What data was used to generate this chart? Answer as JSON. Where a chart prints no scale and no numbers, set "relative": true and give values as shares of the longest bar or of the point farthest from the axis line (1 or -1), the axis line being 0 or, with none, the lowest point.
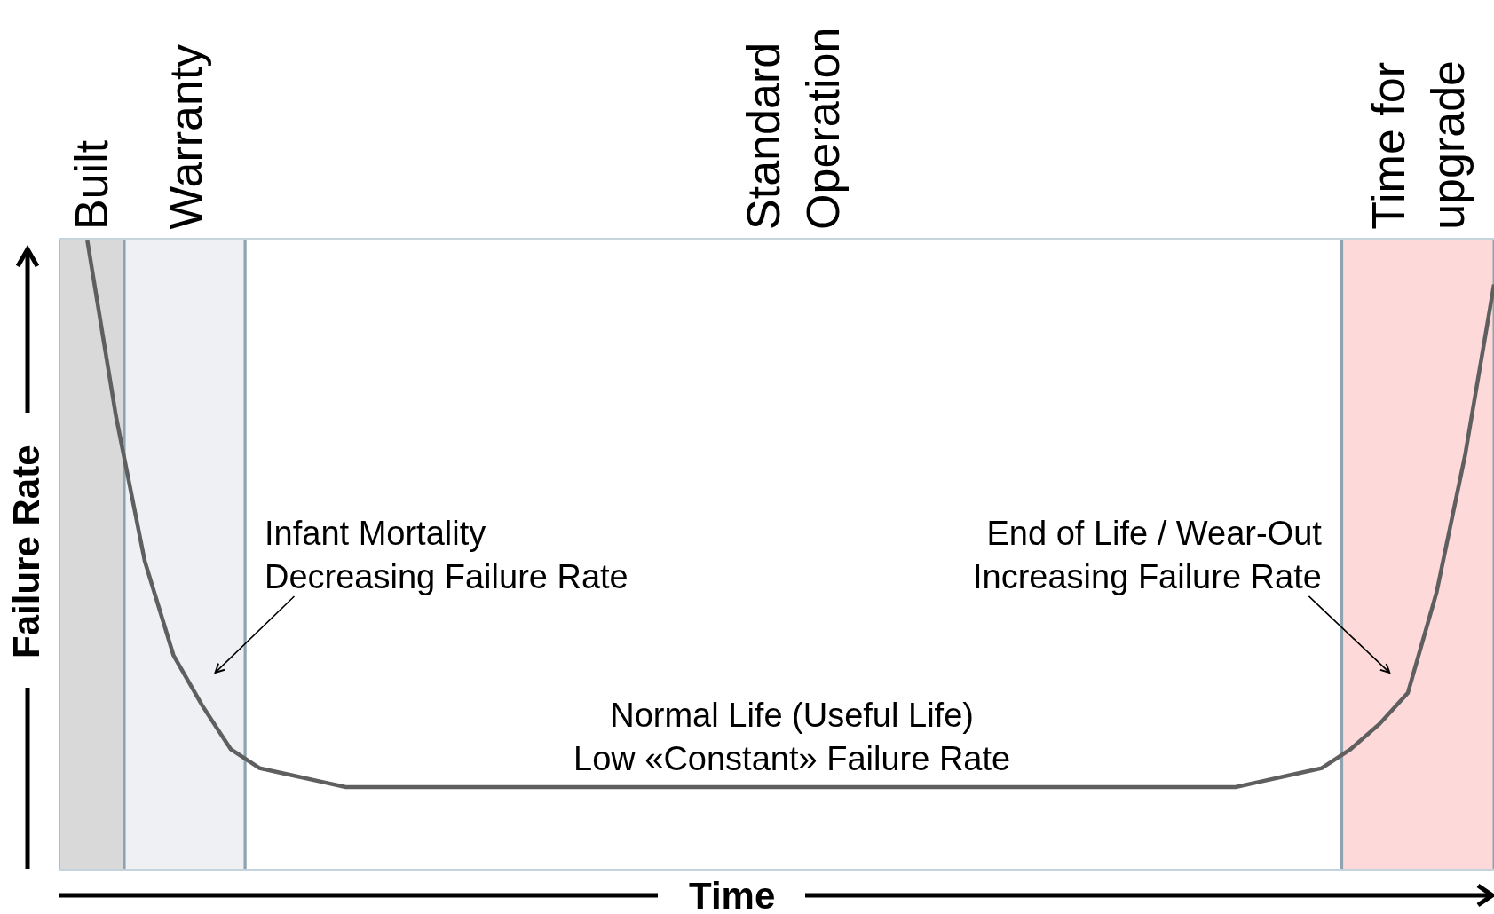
{
  "chart_data": {
    "type": "line",
    "relative": true,
    "xlabel": "Time",
    "ylabel": "Failure Rate",
    "marker": "none",
    "line_style": "solid",
    "categories": [
      null,
      null,
      null,
      null,
      null,
      null,
      null,
      null,
      null,
      null,
      null,
      null,
      null,
      null,
      null,
      null,
      null,
      null,
      null,
      null,
      null,
      null,
      null,
      null,
      null,
      null,
      null,
      null,
      null,
      null,
      null,
      null,
      null,
      null,
      null,
      null,
      null,
      null,
      null,
      null,
      null,
      null,
      null,
      null,
      null,
      null,
      null,
      null,
      null,
      null,
      null
    ],
    "series": [
      {
        "color": "#5f5f5f",
        "values": [
          null,
          1.0,
          0.72,
          0.49,
          0.34,
          0.26,
          0.19,
          0.16,
          0.15,
          0.14,
          0.13,
          0.13,
          0.13,
          0.13,
          0.13,
          0.13,
          0.13,
          0.13,
          0.13,
          0.13,
          0.13,
          0.13,
          0.13,
          0.13,
          0.13,
          0.13,
          0.13,
          0.13,
          0.13,
          0.13,
          0.13,
          0.13,
          0.13,
          0.13,
          0.13,
          0.13,
          0.13,
          0.13,
          0.13,
          0.13,
          0.13,
          0.13,
          0.14,
          0.15,
          0.16,
          0.19,
          0.23,
          0.28,
          0.44,
          0.66,
          0.93
        ]
      }
    ],
    "annotations": [
      "Built",
      "Warranty",
      "Standard\nOperation",
      "Time for\nupgrade",
      "Infant Mortality\nDecreasing Failure Rate",
      "Normal Life (Useful Life)\nLow «Constant» Failure Rate",
      "End of Life / Wear-Out\nIncreasing Failure Rate"
    ]
  }
}
